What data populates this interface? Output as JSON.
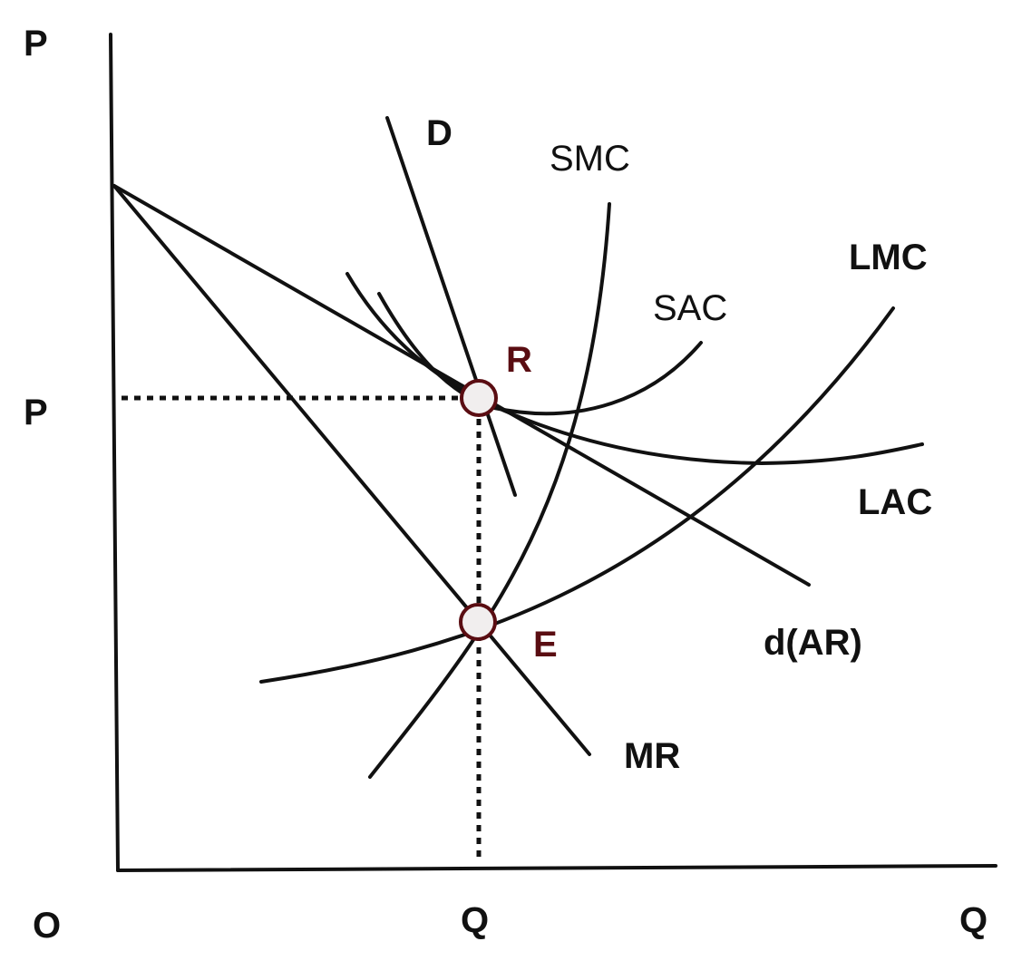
{
  "axes": {
    "y_label": "P",
    "x_label": "Q",
    "origin_label": "O",
    "price_tick_label": "P",
    "quantity_tick_label": "Q"
  },
  "curves": {
    "demand": "D",
    "smc": "SMC",
    "sac": "SAC",
    "lmc": "LMC",
    "lac": "LAC",
    "dar": "d(AR)",
    "mr": "MR"
  },
  "points": {
    "r": "R",
    "e": "E"
  },
  "colors": {
    "line": "#111111",
    "point_outline": "#5a0d12",
    "point_fill": "#f1eeee",
    "point_label": "#5a0d12"
  }
}
